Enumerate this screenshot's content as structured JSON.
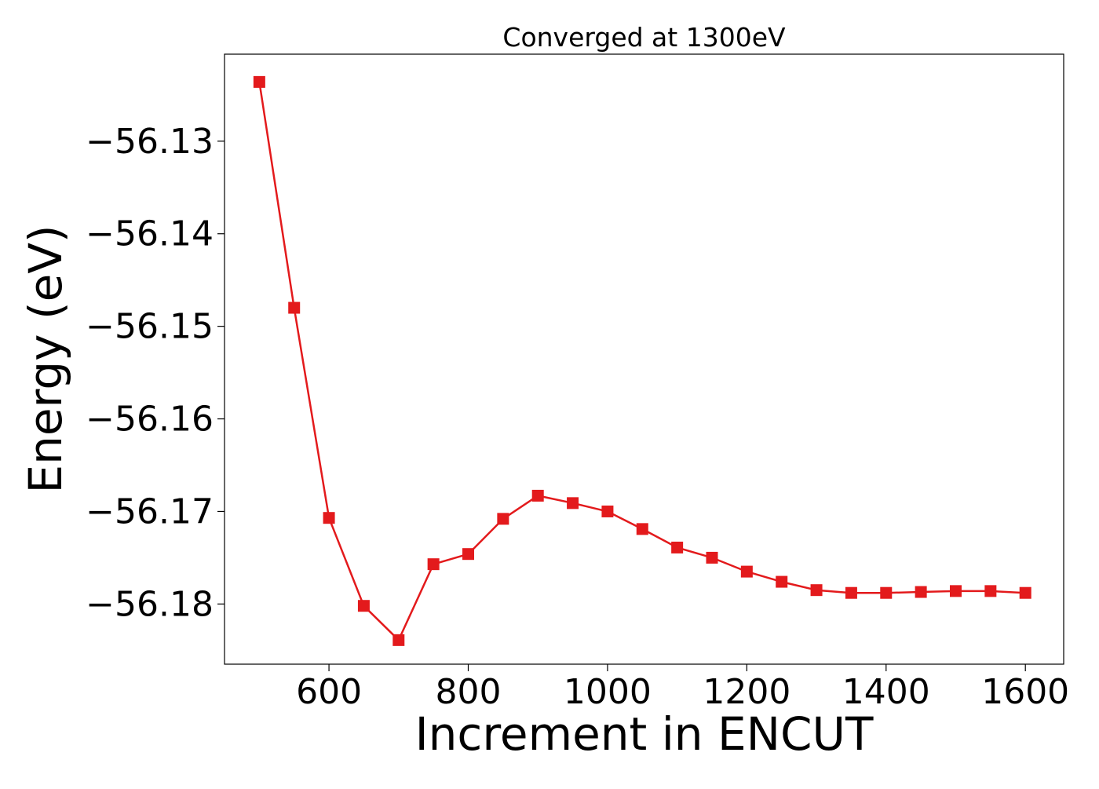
{
  "chart_data": {
    "type": "line",
    "title": "Converged at 1300eV",
    "xlabel": "Increment in ENCUT",
    "ylabel": "Energy (eV)",
    "x": [
      500,
      550,
      600,
      650,
      700,
      750,
      800,
      850,
      900,
      950,
      1000,
      1050,
      1100,
      1150,
      1200,
      1250,
      1300,
      1350,
      1400,
      1450,
      1500,
      1550,
      1600
    ],
    "series": [
      {
        "name": "",
        "values": [
          -56.1236,
          -56.148,
          -56.1707,
          -56.1802,
          -56.1839,
          -56.1757,
          -56.1746,
          -56.1708,
          -56.1683,
          -56.1691,
          -56.17,
          -56.1719,
          -56.1739,
          -56.175,
          -56.1765,
          -56.1776,
          -56.1785,
          -56.1788,
          -56.1788,
          -56.1787,
          -56.1786,
          -56.1786,
          -56.1788
        ],
        "color": "#e31a1c",
        "marker": "square"
      }
    ],
    "xlim": [
      450,
      1655
    ],
    "ylim": [
      -56.1865,
      -56.1206
    ],
    "xticks": [
      600,
      800,
      1000,
      1200,
      1400,
      1600
    ],
    "xtick_labels": [
      "600",
      "800",
      "1000",
      "1200",
      "1400",
      "1600"
    ],
    "yticks": [
      -56.13,
      -56.14,
      -56.15,
      -56.16,
      -56.17,
      -56.18
    ],
    "ytick_labels": [
      "−56.13",
      "−56.14",
      "−56.15",
      "−56.16",
      "−56.17",
      "−56.18"
    ],
    "grid": false,
    "legend": "none"
  }
}
